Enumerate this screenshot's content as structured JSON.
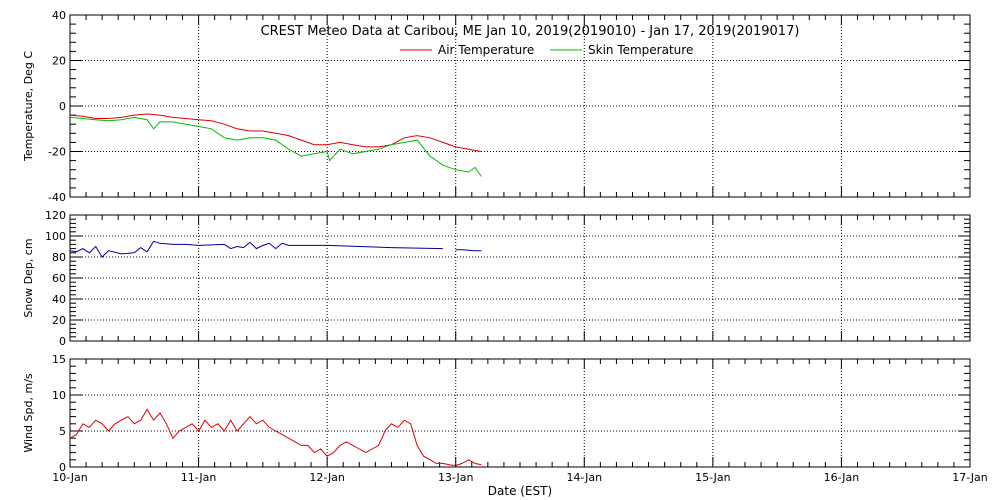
{
  "title": "CREST Meteo Data at Caribou, ME   Jan 10, 2019(2019010) - Jan 17, 2019(2019017)",
  "xlabel": "Date (EST)",
  "x_ticks": [
    "10-Jan",
    "11-Jan",
    "12-Jan",
    "13-Jan",
    "14-Jan",
    "15-Jan",
    "16-Jan",
    "17-Jan"
  ],
  "colors": {
    "air": "#dd0000",
    "skin": "#00bb00",
    "snow": "#000099",
    "wind": "#dd0000"
  },
  "chart_data": [
    {
      "type": "line",
      "ylabel": "Temperature, Deg C",
      "ylim": [
        -40,
        40
      ],
      "y_ticks": [
        -40,
        -20,
        0,
        20,
        40
      ],
      "x_unit": "days since 10-Jan 00:00 EST",
      "xlim": [
        0,
        7
      ],
      "grid": true,
      "legend": "top-center",
      "series": [
        {
          "name": "Air Temperature",
          "color": "#dd0000",
          "x": [
            0,
            0.1,
            0.2,
            0.3,
            0.4,
            0.5,
            0.6,
            0.7,
            0.8,
            0.9,
            1.0,
            1.1,
            1.2,
            1.3,
            1.4,
            1.5,
            1.6,
            1.7,
            1.8,
            1.9,
            2.0,
            2.1,
            2.2,
            2.3,
            2.4,
            2.5,
            2.6,
            2.7,
            2.8,
            2.9,
            3.0,
            3.1,
            3.2
          ],
          "values": [
            -4,
            -4.5,
            -5.5,
            -5.5,
            -5,
            -4,
            -3.5,
            -4,
            -5,
            -5.5,
            -6,
            -6.5,
            -8,
            -10,
            -11,
            -11,
            -12,
            -13,
            -15,
            -17,
            -17,
            -16,
            -17,
            -18,
            -18,
            -17,
            -14,
            -13,
            -14,
            -16,
            -18,
            -19,
            -20
          ]
        },
        {
          "name": "Skin Temperature",
          "color": "#00bb00",
          "x": [
            0,
            0.1,
            0.2,
            0.3,
            0.4,
            0.5,
            0.6,
            0.65,
            0.7,
            0.8,
            0.9,
            1.0,
            1.1,
            1.2,
            1.3,
            1.4,
            1.5,
            1.6,
            1.7,
            1.8,
            1.9,
            2.0,
            2.02,
            2.1,
            2.2,
            2.3,
            2.4,
            2.5,
            2.6,
            2.7,
            2.8,
            2.9,
            3.0,
            3.1,
            3.15,
            3.2
          ],
          "values": [
            -5,
            -5.5,
            -6,
            -6.5,
            -6,
            -5,
            -6,
            -10,
            -7,
            -7,
            -8,
            -9,
            -10,
            -14,
            -15,
            -14,
            -14,
            -15,
            -19,
            -22,
            -21,
            -20,
            -24,
            -19,
            -21,
            -20,
            -19,
            -17,
            -16,
            -15,
            -22,
            -26,
            -28,
            -29,
            -27,
            -31
          ]
        }
      ]
    },
    {
      "type": "line",
      "ylabel": "Snow Dep, cm",
      "ylim": [
        0,
        120
      ],
      "y_ticks": [
        0,
        20,
        40,
        60,
        80,
        100,
        120
      ],
      "x_unit": "days since 10-Jan 00:00 EST",
      "xlim": [
        0,
        7
      ],
      "grid": true,
      "series": [
        {
          "name": "",
          "color": "#000099",
          "x": [
            0,
            0.05,
            0.1,
            0.15,
            0.2,
            0.25,
            0.3,
            0.4,
            0.5,
            0.55,
            0.6,
            0.65,
            0.7,
            0.8,
            0.9,
            1.0,
            1.2,
            1.25,
            1.3,
            1.35,
            1.4,
            1.45,
            1.5,
            1.55,
            1.6,
            1.65,
            1.7,
            1.8,
            2.0,
            2.5,
            2.9
          ],
          "values": [
            86,
            85,
            88,
            84,
            90,
            80,
            86,
            83,
            84,
            89,
            85,
            95,
            93,
            92,
            92,
            91,
            92,
            88,
            90,
            89,
            94,
            88,
            91,
            93,
            88,
            93,
            91,
            91,
            91,
            89,
            88
          ]
        },
        {
          "name": "",
          "color": "#000099",
          "x": [
            3.0,
            3.05,
            3.15,
            3.2
          ],
          "values": [
            87,
            87,
            86,
            86
          ]
        }
      ]
    },
    {
      "type": "line",
      "ylabel": "Wind Spd, m/s",
      "ylim": [
        0,
        15
      ],
      "y_ticks": [
        0,
        5,
        10,
        15
      ],
      "x_unit": "days since 10-Jan 00:00 EST",
      "xlim": [
        0,
        7
      ],
      "grid": true,
      "series": [
        {
          "name": "",
          "color": "#dd0000",
          "x": [
            0,
            0.05,
            0.1,
            0.15,
            0.2,
            0.25,
            0.3,
            0.35,
            0.4,
            0.45,
            0.5,
            0.55,
            0.6,
            0.65,
            0.7,
            0.75,
            0.8,
            0.85,
            0.9,
            0.95,
            1.0,
            1.05,
            1.1,
            1.15,
            1.2,
            1.25,
            1.3,
            1.35,
            1.4,
            1.45,
            1.5,
            1.55,
            1.6,
            1.65,
            1.7,
            1.75,
            1.8,
            1.85,
            1.9,
            1.95,
            2.0,
            2.05,
            2.1,
            2.15,
            2.2,
            2.25,
            2.3,
            2.35,
            2.4,
            2.45,
            2.5,
            2.55,
            2.6,
            2.65,
            2.7,
            2.75,
            2.8,
            2.85,
            2.9,
            2.95,
            3.0,
            3.05,
            3.1,
            3.15,
            3.2
          ],
          "values": [
            4,
            4.5,
            6,
            5.5,
            6.5,
            6,
            5,
            6,
            6.5,
            7,
            6,
            6.5,
            8,
            6.5,
            7.5,
            6,
            4,
            5,
            5.5,
            6,
            5,
            6.5,
            5.5,
            6,
            5,
            6.5,
            5,
            6,
            7,
            6,
            6.5,
            5.5,
            5,
            4.5,
            4,
            3.5,
            3,
            3,
            2,
            2.5,
            1.5,
            2,
            3,
            3.5,
            3,
            2.5,
            2,
            2.5,
            3,
            5,
            6,
            5.5,
            6.5,
            6,
            3,
            1.5,
            1,
            0.5,
            0.5,
            0.3,
            0.2,
            0.5,
            1,
            0.5,
            0.3
          ]
        }
      ]
    }
  ]
}
